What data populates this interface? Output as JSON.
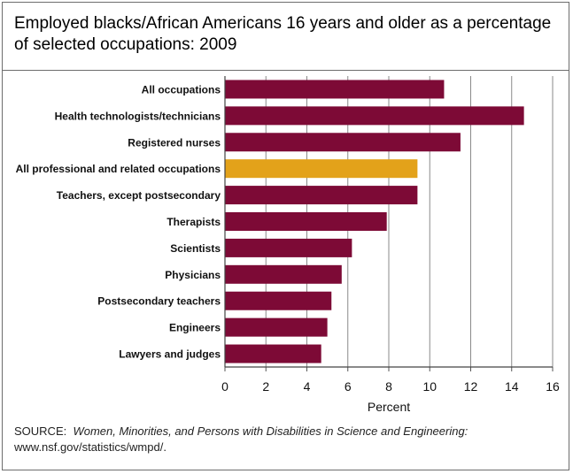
{
  "chart_data": {
    "type": "bar",
    "orientation": "horizontal",
    "title": "Employed blacks/African Americans 16 years and older as a percentage of selected occupations: 2009",
    "xlabel": "Percent",
    "ylabel": "",
    "xlim": [
      0,
      16
    ],
    "xticks": [
      "0",
      "2",
      "4",
      "6",
      "8",
      "10",
      "12",
      "14",
      "16"
    ],
    "grid": "vertical",
    "categories": [
      "All occupations",
      "Health technologists/technicians",
      "Registered nurses",
      "All professional and related occupations",
      "Teachers, except postsecondary",
      "Therapists",
      "Scientists",
      "Physicians",
      "Postsecondary teachers",
      "Engineers",
      "Lawyers and judges"
    ],
    "values": [
      10.7,
      14.6,
      11.5,
      9.4,
      9.4,
      7.9,
      6.2,
      5.7,
      5.2,
      5.0,
      4.7
    ],
    "highlight_index": 3,
    "bar_color": "#7d0a36",
    "highlight_color": "#e3a21a"
  },
  "source": {
    "prefix": "SOURCE:",
    "publication": "Women, Minorities, and Persons with Disabilities in Science and Engineering:",
    "url": "www.nsf.gov/statistics/wmpd/."
  }
}
